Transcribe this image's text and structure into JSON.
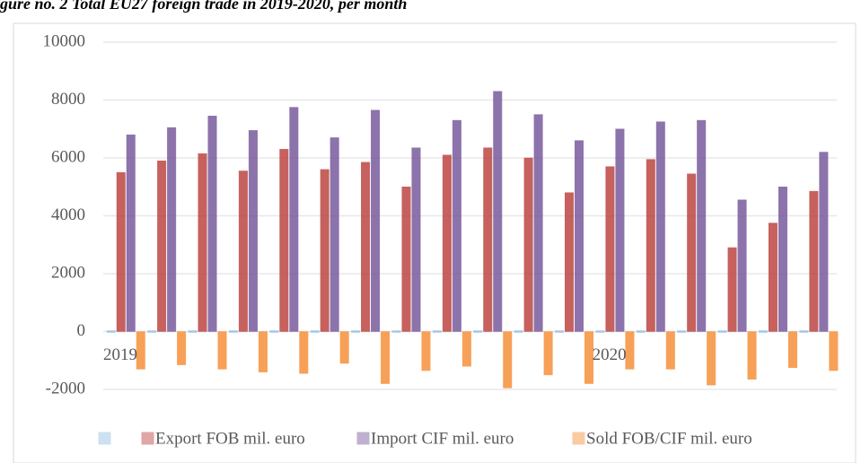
{
  "chart_data": {
    "type": "bar",
    "title": "gure no. 2 Total EU27 foreign trade in 2019-2020, per month",
    "categories": [
      "2019",
      null,
      null,
      null,
      null,
      null,
      null,
      null,
      null,
      null,
      null,
      null,
      "2020",
      null,
      null,
      null,
      null,
      null
    ],
    "series": [
      {
        "name": null,
        "color": "#9dc3e6",
        "values": [
          0,
          0,
          0,
          0,
          0,
          0,
          0,
          0,
          0,
          0,
          0,
          0,
          0,
          0,
          0,
          0,
          0,
          0
        ]
      },
      {
        "name": "Export FOB mil. euro",
        "color": "#c0504d",
        "values": [
          5500,
          5900,
          6150,
          5550,
          6300,
          5600,
          5850,
          5000,
          6100,
          6350,
          6000,
          4800,
          5700,
          5950,
          5450,
          2900,
          3750,
          4850
        ]
      },
      {
        "name": "Import CIF mil. euro",
        "color": "#8064a2",
        "values": [
          6800,
          7050,
          7450,
          6950,
          7750,
          6700,
          7650,
          6350,
          7300,
          8300,
          7500,
          6600,
          7000,
          7250,
          7300,
          4550,
          5000,
          6200
        ]
      },
      {
        "name": "Sold FOB/CIF mil. euro",
        "color": "#f79646",
        "values": [
          -1300,
          -1150,
          -1300,
          -1400,
          -1450,
          -1100,
          -1800,
          -1350,
          -1200,
          -1950,
          -1500,
          -1800,
          -1300,
          -1300,
          -1850,
          -1650,
          -1250,
          -1350
        ]
      }
    ],
    "ylim": [
      -2000,
      10000
    ],
    "yticks": [
      -2000,
      0,
      2000,
      4000,
      6000,
      8000,
      10000
    ],
    "grid": true,
    "legend": "bottom"
  }
}
